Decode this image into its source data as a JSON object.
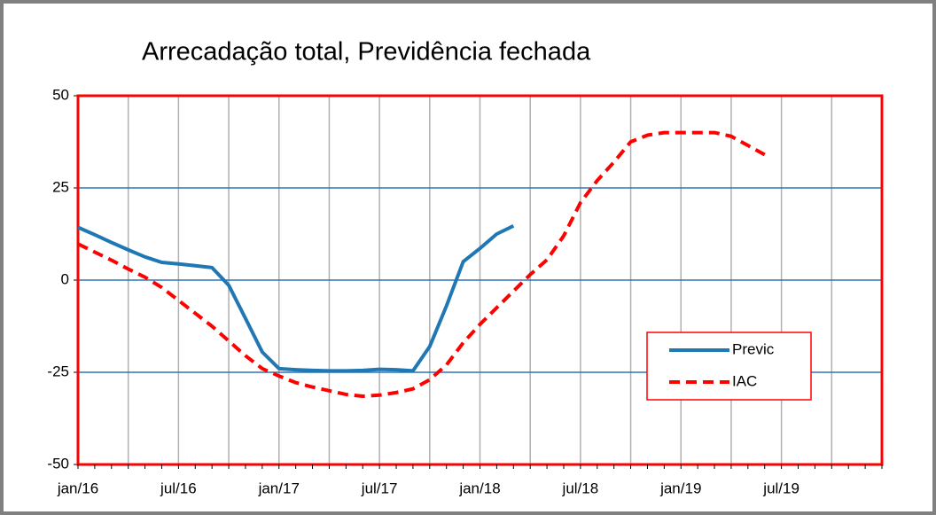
{
  "chart_data": {
    "type": "line",
    "title": "Arrecadação total, Previdência fechada",
    "categories": [
      "jan/16",
      null,
      null,
      null,
      null,
      null,
      "jul/16",
      null,
      null,
      null,
      null,
      null,
      "jan/17",
      null,
      null,
      null,
      null,
      null,
      "jul/17",
      null,
      null,
      null,
      null,
      null,
      "jan/18",
      null,
      null,
      null,
      null,
      null,
      "jul/18",
      null,
      null,
      null,
      null,
      null,
      "jan/19",
      null,
      null,
      null,
      null,
      null,
      "jul/19",
      null,
      null,
      null,
      null,
      null,
      null
    ],
    "series": [
      {
        "name": "Previc",
        "color": "#1f77b4",
        "dash": false,
        "values": [
          14.3,
          12.3,
          10.2,
          8.2,
          6.3,
          4.8,
          4.4,
          3.9,
          3.4,
          -1.4,
          -10.4,
          -19.5,
          -24,
          -24.3,
          -24.5,
          -24.6,
          -24.6,
          -24.5,
          -24.2,
          -24.3,
          -24.6,
          -18,
          -7,
          5,
          8.6,
          12.5,
          14.7,
          null,
          null,
          null,
          null,
          null,
          null,
          null,
          null,
          null,
          null,
          null,
          null,
          null,
          null,
          null,
          null,
          null,
          null,
          null,
          null,
          null,
          null
        ]
      },
      {
        "name": "IAC",
        "color": "#ff0000",
        "dash": true,
        "values": [
          9.8,
          7.6,
          5.4,
          3.0,
          0.8,
          -2,
          -5.5,
          -9,
          -12.5,
          -16.5,
          -20.5,
          -24,
          -26,
          -27.8,
          -29,
          -30,
          -31,
          -31.5,
          -31.2,
          -30.5,
          -29.5,
          -27,
          -23,
          -17,
          -12,
          -7.5,
          -3,
          1.5,
          5.5,
          12,
          21,
          27,
          32,
          37.5,
          39.3,
          40,
          40,
          40,
          40,
          39,
          36.5,
          34,
          null,
          null,
          null,
          null,
          null,
          null,
          null
        ]
      }
    ],
    "ylim": [
      -50,
      50
    ],
    "yticks": [
      -50,
      -25,
      0,
      25,
      50
    ],
    "grid": true,
    "legend": "lower-right"
  }
}
